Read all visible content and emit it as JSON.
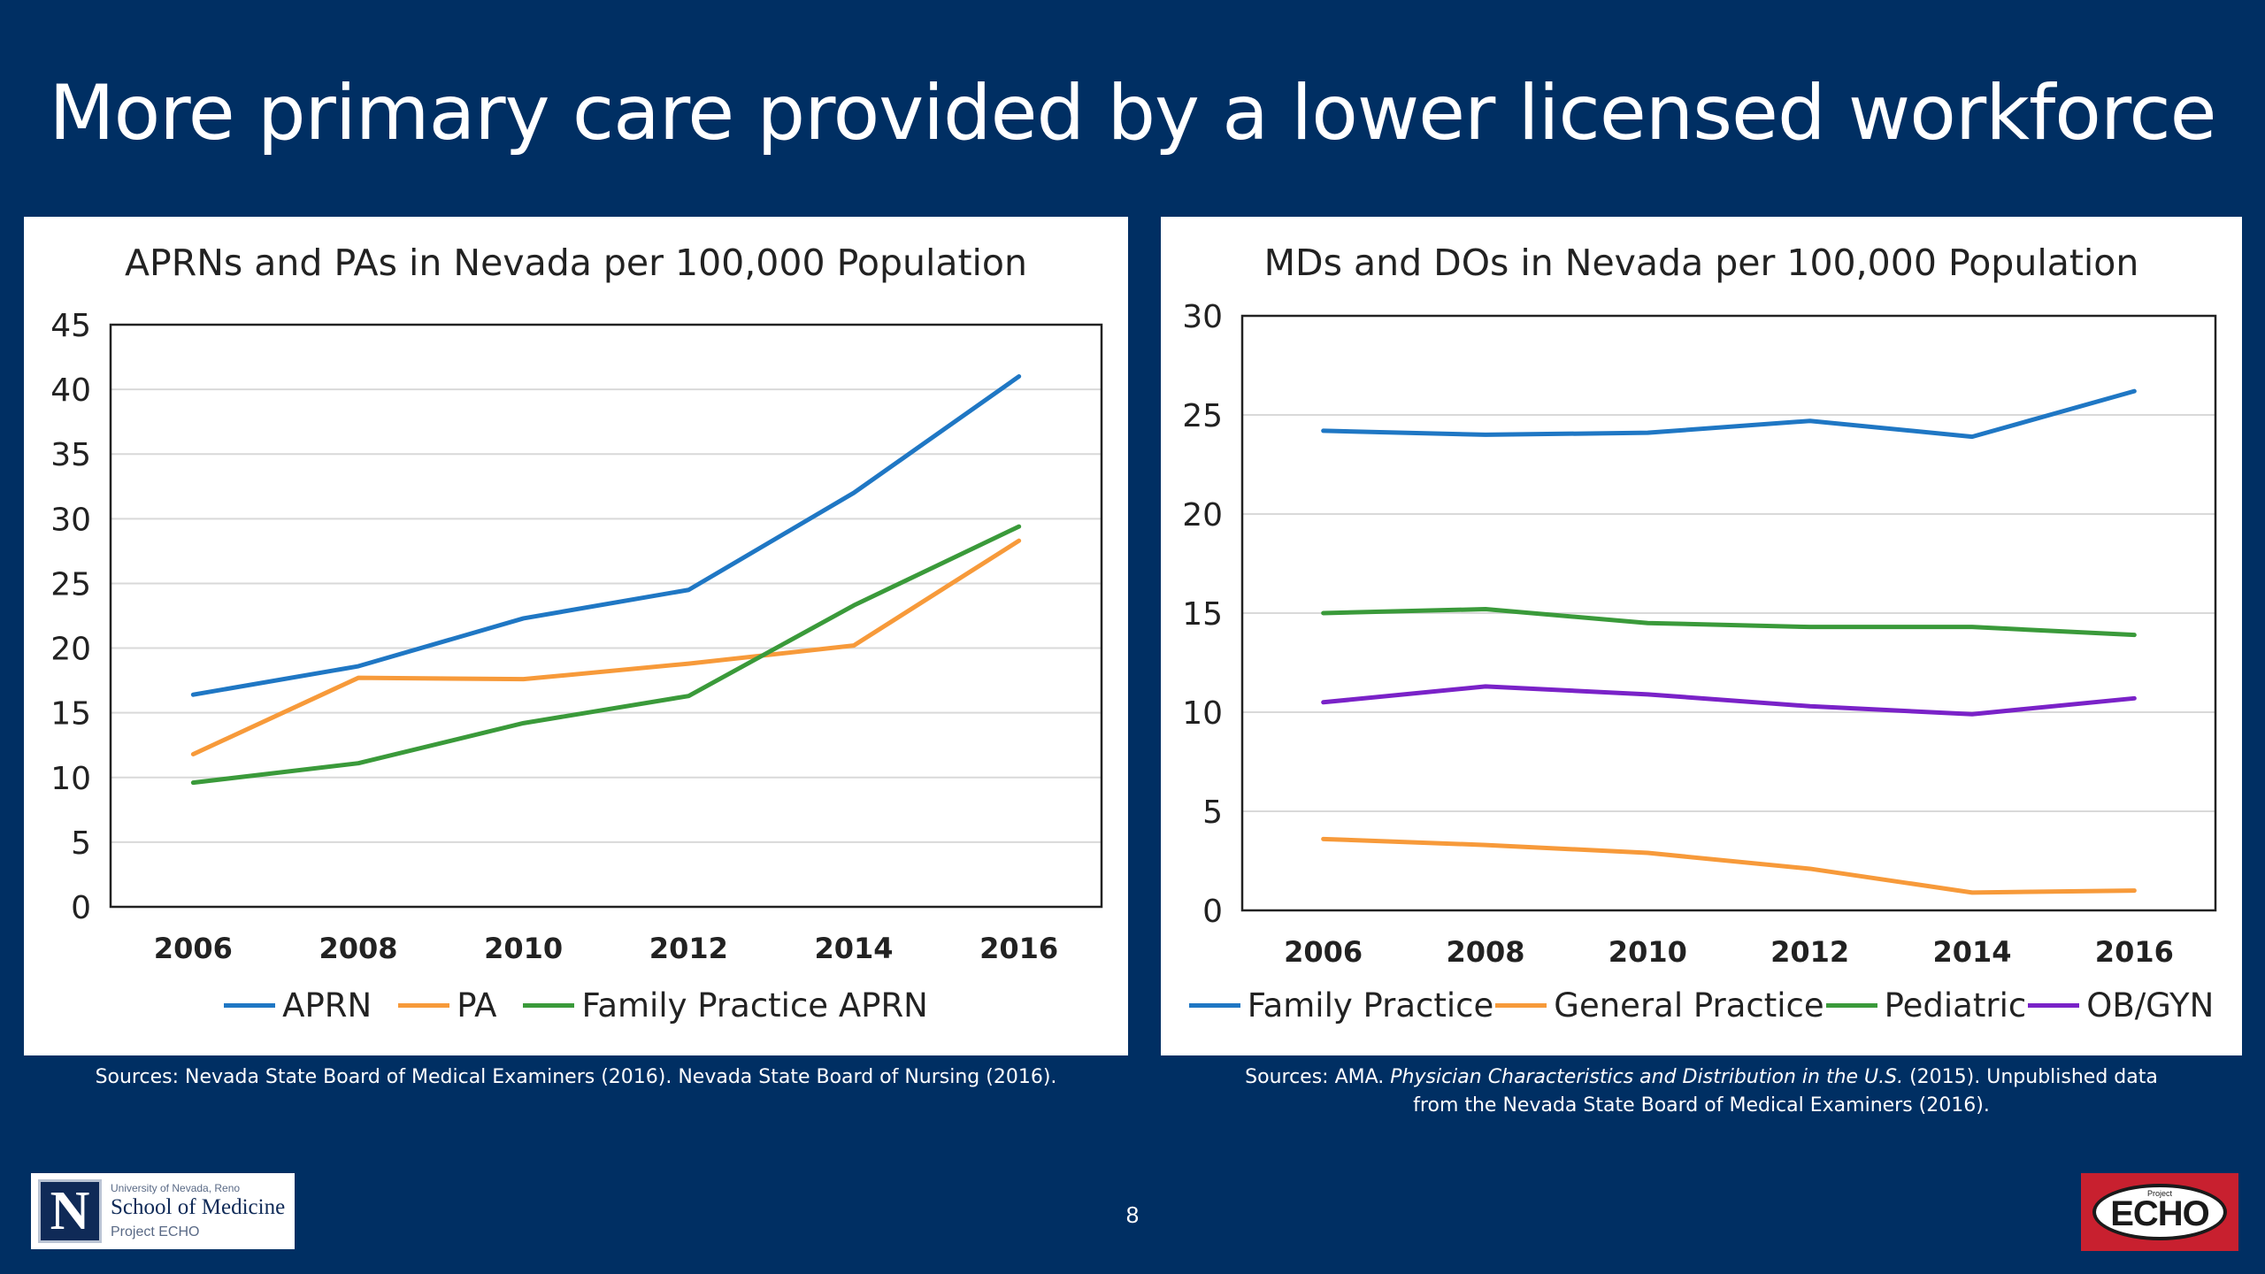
{
  "slide": {
    "title": "More primary care provided by a lower licensed workforce",
    "page_number": "8",
    "sources_left": "Sources: Nevada State Board of Medical Examiners (2016). Nevada State Board of Nursing (2016).",
    "sources_right_prefix": "Sources: AMA. ",
    "sources_right_italic": "Physician Characteristics and Distribution in the U.S.",
    "sources_right_suffix": " (2015). Unpublished data",
    "sources_right_line2": "from the Nevada State Board of Medical Examiners (2016).",
    "logo_left": {
      "small": "University of Nevada, Reno",
      "school": "School of Medicine",
      "program": "Project ECHO",
      "letter": "N"
    },
    "logo_right": {
      "small": "Project",
      "text": "ECHO"
    }
  },
  "chart_data": [
    {
      "type": "line",
      "title": "APRNs and PAs in Nevada per 100,000 Population",
      "x": [
        "2006",
        "2008",
        "2010",
        "2012",
        "2014",
        "2016"
      ],
      "ylim": [
        0,
        45
      ],
      "yticks": [
        0,
        5,
        10,
        15,
        20,
        25,
        30,
        35,
        40,
        45
      ],
      "grid": true,
      "legend": "bottom",
      "series": [
        {
          "name": "APRN",
          "color": "#1F77C4",
          "values": [
            16.4,
            18.6,
            22.3,
            24.5,
            32.0,
            41.0
          ]
        },
        {
          "name": "PA",
          "color": "#F79A3A",
          "values": [
            11.8,
            17.7,
            17.6,
            18.8,
            20.2,
            28.3
          ]
        },
        {
          "name": "Family Practice APRN",
          "color": "#3A9A3A",
          "values": [
            9.6,
            11.1,
            14.2,
            16.3,
            23.3,
            29.4
          ]
        }
      ]
    },
    {
      "type": "line",
      "title": "MDs and DOs in Nevada per 100,000 Population",
      "x": [
        "2006",
        "2008",
        "2010",
        "2012",
        "2014",
        "2016"
      ],
      "ylim": [
        0,
        30
      ],
      "yticks": [
        0,
        5,
        10,
        15,
        20,
        25,
        30
      ],
      "grid": true,
      "legend": "bottom",
      "series": [
        {
          "name": "Family Practice",
          "color": "#1F77C4",
          "values": [
            24.2,
            24.0,
            24.1,
            24.7,
            23.9,
            26.2
          ]
        },
        {
          "name": "General Practice",
          "color": "#F79A3A",
          "values": [
            3.6,
            3.3,
            2.9,
            2.1,
            0.9,
            1.0
          ]
        },
        {
          "name": "Pediatric",
          "color": "#3A9A3A",
          "values": [
            15.0,
            15.2,
            14.5,
            14.3,
            14.3,
            13.9
          ]
        },
        {
          "name": "OB/GYN",
          "color": "#7A22C8",
          "values": [
            10.5,
            11.3,
            10.9,
            10.3,
            9.9,
            10.7
          ]
        }
      ]
    }
  ]
}
